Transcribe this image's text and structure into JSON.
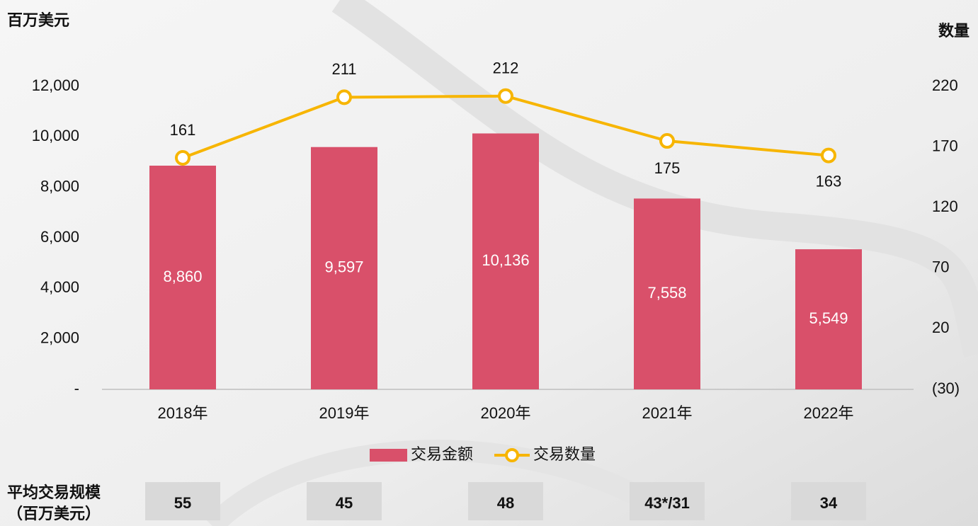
{
  "chart_data": {
    "type": "bar-line",
    "y_axis_label": "百万美元",
    "y2_axis_label": "数量",
    "categories": [
      "2018年",
      "2019年",
      "2020年",
      "2021年",
      "2022年"
    ],
    "series": [
      {
        "name": "交易金额",
        "type": "bar",
        "color": "#d9506a",
        "values": [
          8860,
          9597,
          10136,
          7558,
          5549
        ],
        "value_labels": [
          "8,860",
          "9,597",
          "10,136",
          "7,558",
          "5,549"
        ]
      },
      {
        "name": "交易数量",
        "type": "line",
        "axis": "y2",
        "color": "#f7b500",
        "values": [
          161,
          211,
          212,
          175,
          163
        ]
      }
    ],
    "ylim": [
      0,
      12000
    ],
    "yticks": [
      {
        "value": 0,
        "label": "-"
      },
      {
        "value": 2000,
        "label": "2,000"
      },
      {
        "value": 4000,
        "label": "4,000"
      },
      {
        "value": 6000,
        "label": "6,000"
      },
      {
        "value": 8000,
        "label": "8,000"
      },
      {
        "value": 10000,
        "label": "10,000"
      },
      {
        "value": 12000,
        "label": "12,000"
      }
    ],
    "y2lim": [
      -30,
      220
    ],
    "y2ticks": [
      {
        "value": -30,
        "label": "(30)"
      },
      20,
      70,
      120,
      170,
      220
    ],
    "grid": false,
    "legend": "bottom"
  },
  "avg_deal_size": {
    "label": [
      "平均交易规模",
      "（百万美元）"
    ],
    "values": [
      "55",
      "45",
      "48",
      "43*/31",
      "34"
    ]
  }
}
